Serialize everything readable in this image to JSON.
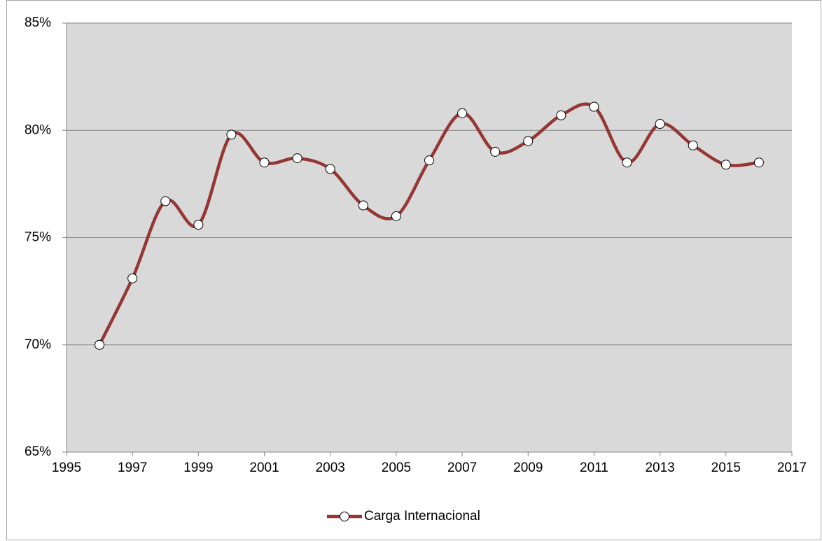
{
  "chart_data": {
    "type": "line",
    "x": [
      1996,
      1997,
      1998,
      1999,
      2000,
      2001,
      2002,
      2003,
      2004,
      2005,
      2006,
      2007,
      2008,
      2009,
      2010,
      2011,
      2012,
      2013,
      2014,
      2015,
      2016
    ],
    "series": [
      {
        "name": "Carga Internacional",
        "color": "#943634",
        "values": [
          70.0,
          73.1,
          76.7,
          75.6,
          79.8,
          78.5,
          78.7,
          78.2,
          76.5,
          76.0,
          78.6,
          80.8,
          79.0,
          79.5,
          80.7,
          81.1,
          78.5,
          80.3,
          79.3,
          78.4,
          78.5
        ]
      }
    ],
    "xlim": [
      1995,
      2017
    ],
    "xticks": [
      1995,
      1997,
      1999,
      2001,
      2003,
      2005,
      2007,
      2009,
      2011,
      2013,
      2015,
      2017
    ],
    "ylim": [
      65,
      85
    ],
    "yticks": [
      {
        "value": 65,
        "label": "65%"
      },
      {
        "value": 70,
        "label": "70%"
      },
      {
        "value": 75,
        "label": "75%"
      },
      {
        "value": 80,
        "label": "80%"
      },
      {
        "value": 85,
        "label": "85%"
      }
    ],
    "grid": true,
    "smooth": true,
    "legend": "bottom"
  }
}
